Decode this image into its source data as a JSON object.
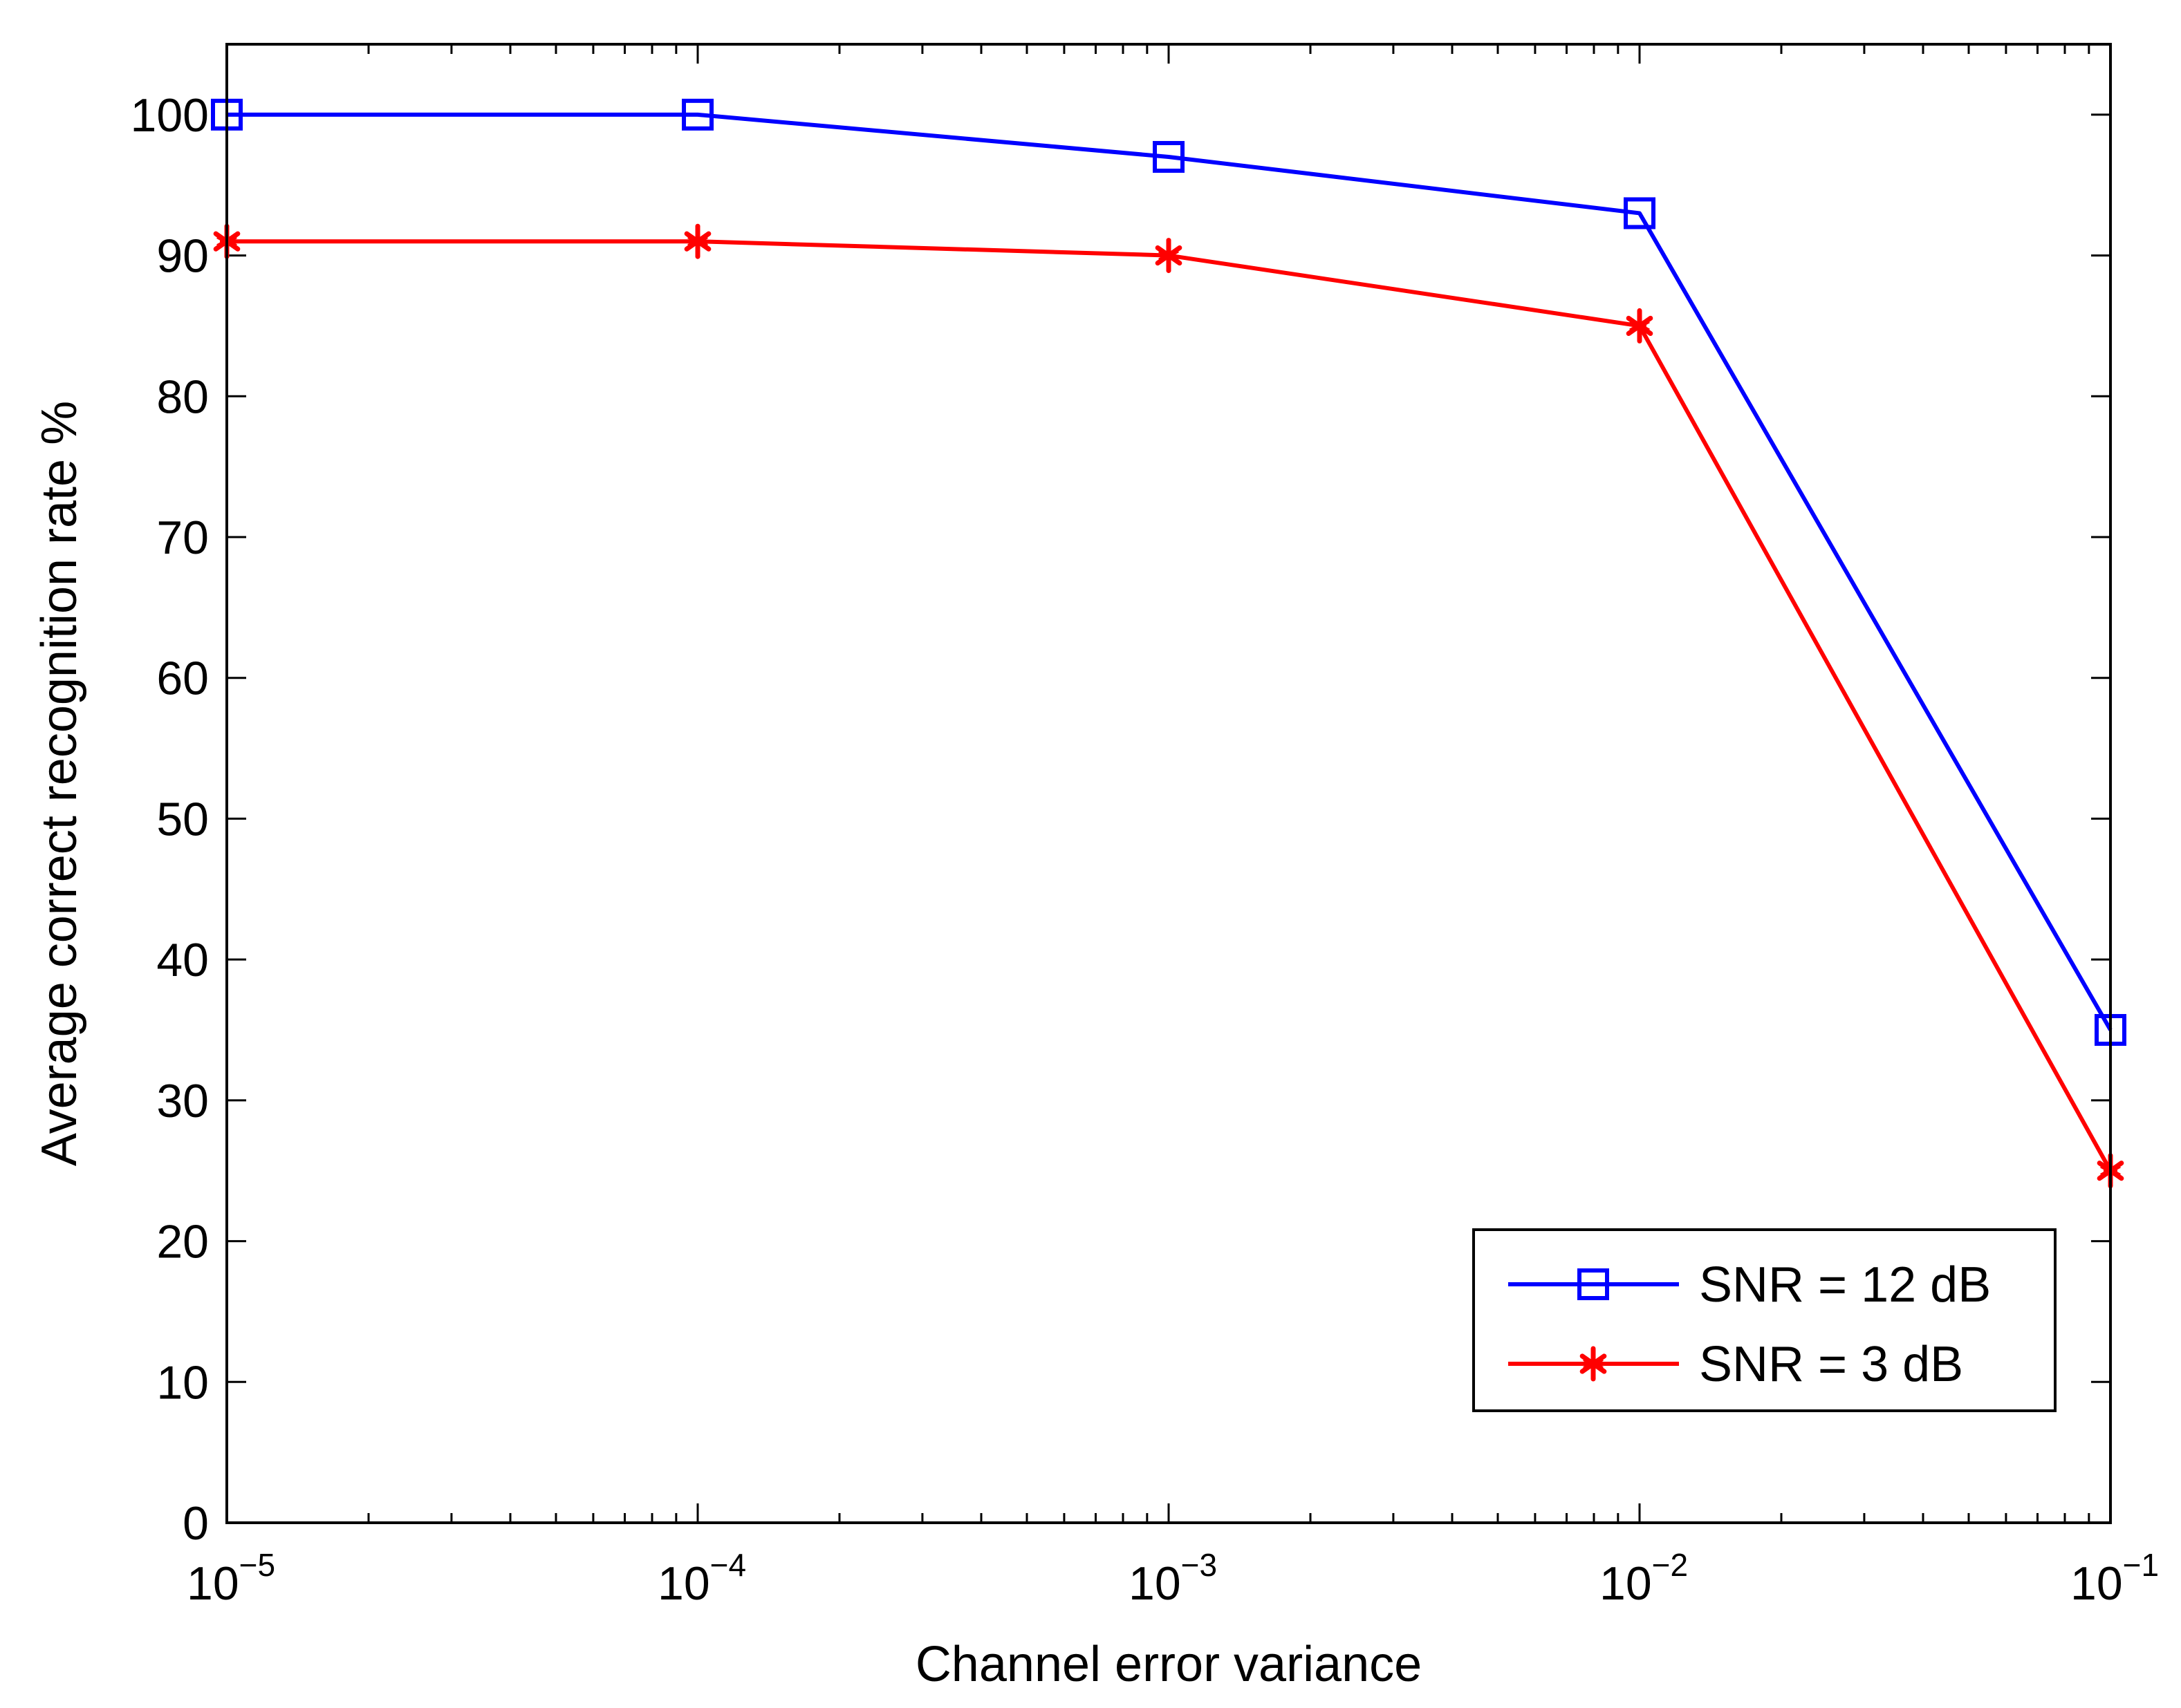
{
  "chart_data": {
    "type": "line",
    "title": "",
    "xlabel": "Channel error variance",
    "ylabel": "Average correct recognition rate %",
    "xscale": "log",
    "x": [
      1e-05,
      0.0001,
      0.001,
      0.01,
      0.1
    ],
    "xticks": [
      {
        "value": 1e-05,
        "base": "10",
        "exp": "−5"
      },
      {
        "value": 0.0001,
        "base": "10",
        "exp": "−4"
      },
      {
        "value": 0.001,
        "base": "10",
        "exp": "−3"
      },
      {
        "value": 0.01,
        "base": "10",
        "exp": "−2"
      },
      {
        "value": 0.1,
        "base": "10",
        "exp": "−1"
      }
    ],
    "xlim": [
      1e-05,
      0.1
    ],
    "ylim": [
      0,
      105
    ],
    "yticks": [
      0,
      10,
      20,
      30,
      40,
      50,
      60,
      70,
      80,
      90,
      100
    ],
    "ytick_labels": [
      "0",
      "10",
      "20",
      "30",
      "40",
      "50",
      "60",
      "70",
      "80",
      "90",
      "100"
    ],
    "grid": false,
    "legend_position": "bottom-right",
    "series": [
      {
        "name": "SNR = 12 dB",
        "values": [
          100,
          100,
          97,
          93,
          35
        ],
        "color": "#0000ff",
        "marker": "square"
      },
      {
        "name": "SNR = 3 dB",
        "values": [
          91,
          91,
          90,
          85,
          25
        ],
        "color": "#ff0000",
        "marker": "asterisk"
      }
    ]
  }
}
